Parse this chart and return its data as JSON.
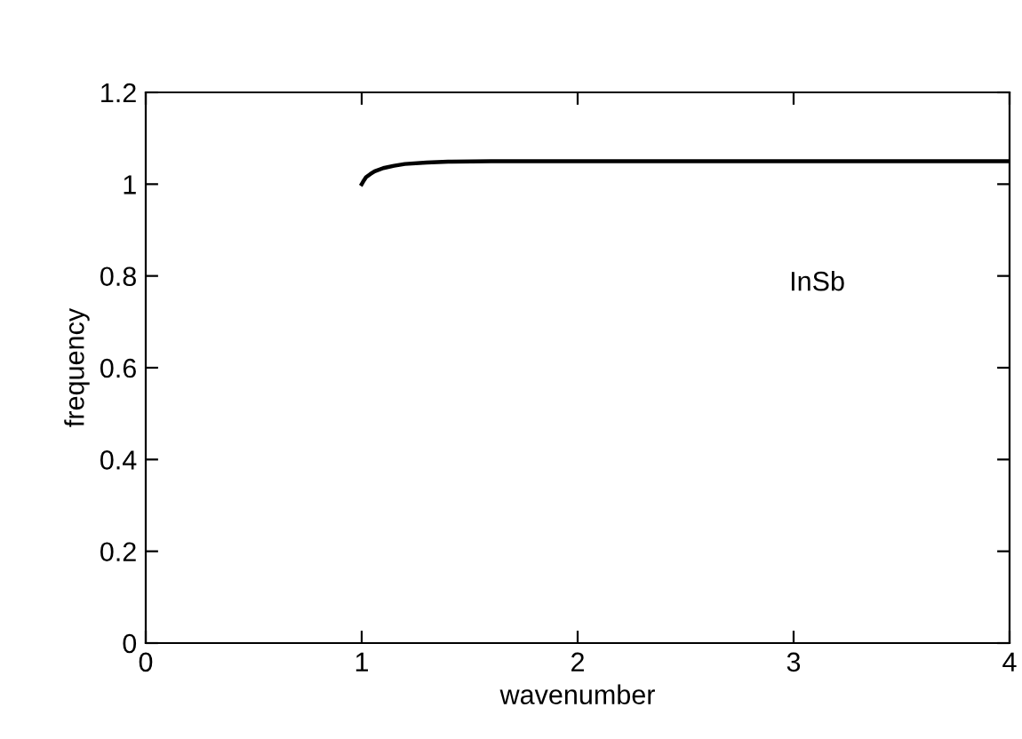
{
  "chart_data": {
    "type": "line",
    "xlabel": "wavenumber",
    "ylabel": "frequency",
    "annotations": [
      "InSb"
    ],
    "series": [
      {
        "color": "#000000",
        "x": [
          1,
          1.01,
          1.02,
          1.04,
          1.06,
          1.1,
          1.15,
          1.2,
          1.3,
          1.4,
          1.6,
          2,
          3,
          4
        ],
        "values": [
          1.0,
          1.008,
          1.015,
          1.022,
          1.028,
          1.035,
          1.04,
          1.044,
          1.047,
          1.049,
          1.05,
          1.05,
          1.05,
          1.05
        ]
      }
    ],
    "xlim": [
      0,
      4
    ],
    "xticks": [
      0,
      1,
      2,
      3,
      4
    ],
    "ylim": [
      0,
      1.2
    ],
    "yticks": [
      0,
      0.2,
      0.4,
      0.6,
      0.8,
      1,
      1.2
    ],
    "grid": false,
    "legend": false,
    "marker": "none",
    "line_style": "solid"
  }
}
